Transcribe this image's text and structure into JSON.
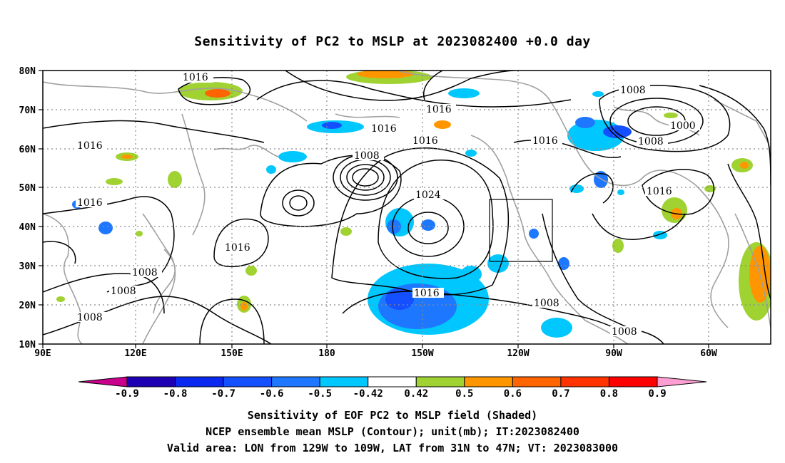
{
  "title": "Sensitivity of PC2 to MSLP at 2023082400 +0.0 day",
  "map": {
    "lon_labels": [
      "90E",
      "120E",
      "150E",
      "180",
      "150W",
      "120W",
      "90W",
      "60W"
    ],
    "lat_labels": [
      "80N",
      "70N",
      "60N",
      "50N",
      "40N",
      "30N",
      "20N",
      "10N"
    ],
    "contour_labels": [
      "1016",
      "1016",
      "1016",
      "1016",
      "1016",
      "1008",
      "1024",
      "1016",
      "1016",
      "1008",
      "1008",
      "1016",
      "1016",
      "1008",
      "1000",
      "1008",
      "1016",
      "1008",
      "1016",
      "1008",
      "1008"
    ],
    "valid_box": {
      "lon_range": [
        "129W",
        "109W"
      ],
      "lat_range": [
        "31N",
        "47N"
      ]
    }
  },
  "colorbar": {
    "tick_labels": [
      "-0.9",
      "-0.8",
      "-0.7",
      "-0.6",
      "-0.5",
      "-0.42",
      "0.42",
      "0.5",
      "0.6",
      "0.7",
      "0.8",
      "0.9"
    ],
    "colors": [
      "#1e00b4",
      "#0a28f0",
      "#1450ff",
      "#1e78ff",
      "#00c8ff",
      "#ffffff",
      "#a0d232",
      "#ff9600",
      "#ff6400",
      "#ff3200",
      "#ff0000"
    ],
    "end_low_color": "#c8008c",
    "end_high_color": "#ff9ed2"
  },
  "captions": {
    "line1": "Sensitivity of EOF PC2 to MSLP field (Shaded)",
    "line2": "NCEP ensemble mean MSLP (Contour); unit(mb); IT:2023082400",
    "line3": "Valid area: LON from 129W to 109W, LAT from 31N to 47N; VT: 2023083000"
  }
}
